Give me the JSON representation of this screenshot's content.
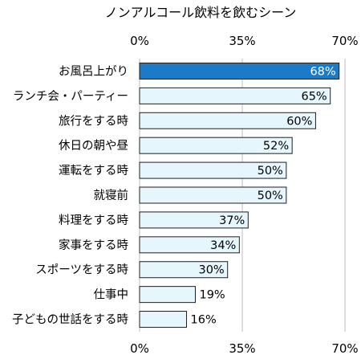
{
  "chart_data": {
    "type": "bar",
    "orientation": "horizontal",
    "title": "ノンアルコール飲料を飲むシーン",
    "xlabel": "",
    "ylabel": "",
    "xlim": [
      0,
      70
    ],
    "ticks": [
      0,
      35,
      70
    ],
    "tick_labels": [
      "0%",
      "35%",
      "70%"
    ],
    "grid": true,
    "categories": [
      "お風呂上がり",
      "ランチ会・パーティー",
      "旅行をする時",
      "休日の朝や昼",
      "運転をする時",
      "就寝前",
      "料理をする時",
      "家事をする時",
      "スポーツをする時",
      "仕事中",
      "子どもの世話をする時"
    ],
    "values": [
      68,
      65,
      60,
      52,
      50,
      50,
      37,
      34,
      30,
      19,
      16
    ],
    "value_labels": [
      "68%",
      "65%",
      "60%",
      "52%",
      "50%",
      "50%",
      "37%",
      "34%",
      "30%",
      "19%",
      "16%"
    ],
    "highlight_index": 0,
    "colors": {
      "highlight": "#1b7bc8",
      "bar": "#e6f6fd",
      "outline": "#1f1f1f",
      "grid": "#bdbdbd"
    }
  }
}
